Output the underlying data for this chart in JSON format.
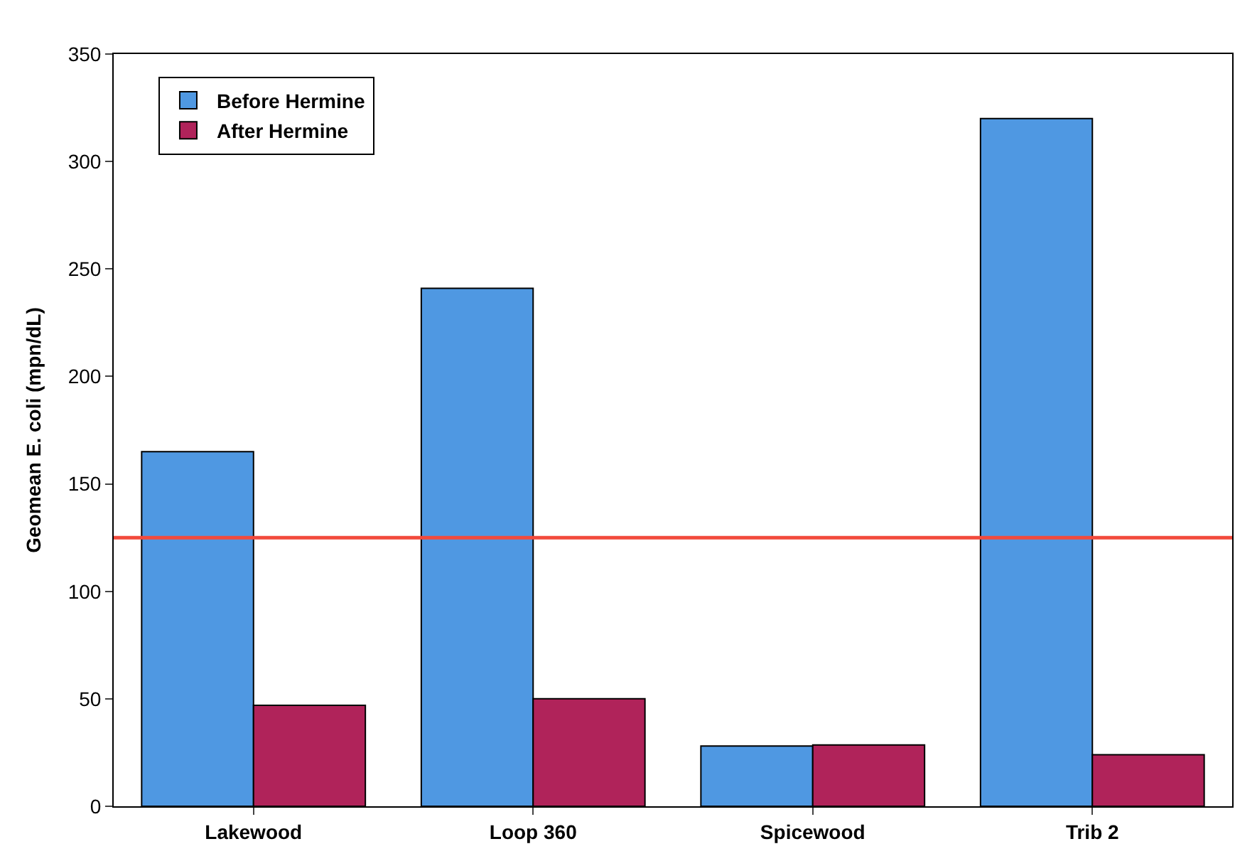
{
  "chart_data": {
    "type": "bar",
    "ylabel": "Geomean E. coli (mpn/dL)",
    "categories": [
      "Lakewood",
      "Loop 360",
      "Spicewood",
      "Trib 2"
    ],
    "series": [
      {
        "name": "Before Hermine",
        "color": "#4f98e2",
        "values": [
          165,
          241,
          28,
          320
        ]
      },
      {
        "name": "After Hermine",
        "color": "#b0235a",
        "values": [
          47,
          50,
          28.5,
          24
        ]
      }
    ],
    "ylim": [
      0,
      350
    ],
    "yticks": [
      0,
      50,
      100,
      150,
      200,
      250,
      300,
      350
    ],
    "ref_lines": [
      {
        "axis": "y",
        "value": 125,
        "color": "#f24a3c"
      }
    ],
    "legend": "top left"
  }
}
